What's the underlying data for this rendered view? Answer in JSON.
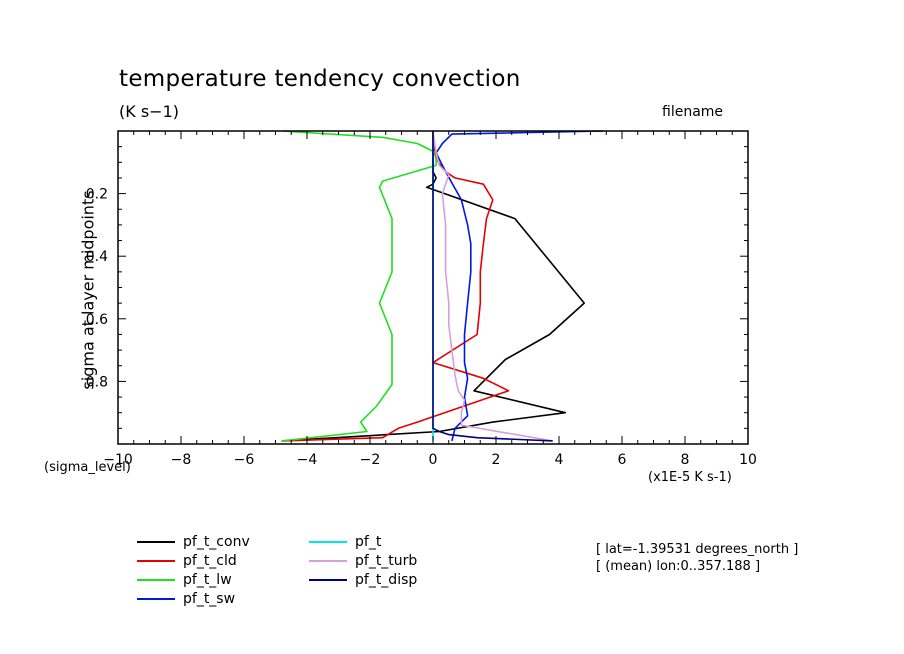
{
  "header": {
    "title": "temperature tendency convection",
    "subtitle": "(K s−1)",
    "filename": "filename"
  },
  "axes": {
    "y_title": "sigma at layer midpoints",
    "y_unit": "(sigma_level)",
    "x_unit": "(x1E-5 K s-1)"
  },
  "meta": {
    "line1": "[ lat=-1.39531 degrees_north ]",
    "line2": "[ (mean) lon:0..357.188 ]"
  },
  "chart_data": {
    "type": "line",
    "title": "temperature tendency convection",
    "subtitle": "(K s−1)",
    "xlabel": "(x1E-5 K s-1)",
    "ylabel": "sigma at layer midpoints",
    "xlim": [
      -10,
      10
    ],
    "ylim": [
      0,
      1
    ],
    "y_inverted": true,
    "x_ticks": [
      -10,
      -8,
      -6,
      -4,
      -2,
      0,
      2,
      4,
      6,
      8,
      10
    ],
    "x_tick_labels": [
      "−10",
      "−8",
      "−6",
      "−4",
      "−2",
      "0",
      "2",
      "4",
      "6",
      "8",
      "10"
    ],
    "y_ticks": [
      0.2,
      0.4,
      0.6,
      0.8
    ],
    "y_tick_labels": [
      "0.2",
      "0.4",
      "0.6",
      "0.8"
    ],
    "grid": false,
    "legend_position": "bottom-left",
    "series": [
      {
        "name": "pf_t_conv",
        "color": "#000000",
        "x": [
          0,
          0,
          0,
          0,
          0.1,
          0,
          -0.2,
          2.6,
          4.8,
          3.7,
          2.3,
          1.3,
          4.2,
          1.9,
          0.2,
          -4.8
        ],
        "y": [
          0,
          0.04,
          0.09,
          0.13,
          0.15,
          0.17,
          0.18,
          0.28,
          0.55,
          0.65,
          0.73,
          0.83,
          0.9,
          0.93,
          0.96,
          0.99
        ]
      },
      {
        "name": "pf_t_cld",
        "color": "#e60000",
        "x": [
          0,
          0,
          0.1,
          0.4,
          0.7,
          1.6,
          1.9,
          1.7,
          1.6,
          1.5,
          1.5,
          1.4,
          0,
          1.6,
          2.4,
          -0.5,
          -1.1,
          -1.6,
          -4.8
        ],
        "y": [
          0,
          0.04,
          0.09,
          0.13,
          0.15,
          0.17,
          0.22,
          0.28,
          0.36,
          0.45,
          0.55,
          0.65,
          0.74,
          0.79,
          0.83,
          0.93,
          0.95,
          0.98,
          0.99
        ]
      },
      {
        "name": "pf_t_lw",
        "color": "#20e020",
        "x": [
          -4.8,
          -1.6,
          -0.5,
          0.1,
          0.1,
          -1.6,
          -1.7,
          -1.3,
          -1.3,
          -1.3,
          -1.7,
          -1.3,
          -1.3,
          -1.3,
          -1.8,
          -2.3,
          -2.1,
          -4.8
        ],
        "y": [
          0,
          0.02,
          0.04,
          0.07,
          0.11,
          0.16,
          0.18,
          0.28,
          0.36,
          0.45,
          0.55,
          0.65,
          0.74,
          0.81,
          0.88,
          0.93,
          0.96,
          0.99
        ]
      },
      {
        "name": "pf_t_sw",
        "color": "#0018e0",
        "x": [
          5.4,
          0.6,
          0.3,
          0.1,
          0.4,
          0.9,
          1.1,
          1.2,
          1.2,
          1.1,
          1.0,
          1.0,
          1.1,
          1.0,
          1.1,
          0.7,
          0.6
        ],
        "y": [
          0,
          0.01,
          0.04,
          0.07,
          0.13,
          0.22,
          0.3,
          0.36,
          0.45,
          0.55,
          0.65,
          0.74,
          0.79,
          0.85,
          0.91,
          0.95,
          0.99
        ]
      },
      {
        "name": "pf_t",
        "color": "#00e6e6",
        "x": [
          0,
          0,
          0,
          0,
          0,
          0,
          0
        ],
        "y": [
          0,
          0.15,
          0.3,
          0.5,
          0.7,
          0.9,
          0.99
        ]
      },
      {
        "name": "pf_t_turb",
        "color": "#d8a0d8",
        "x": [
          0,
          0.1,
          0.2,
          0.5,
          0.3,
          0.4,
          0.4,
          0.5,
          0.5,
          0.6,
          0.7,
          0.8,
          1.0,
          0.9,
          0.9,
          3.8
        ],
        "y": [
          0,
          0.07,
          0.11,
          0.14,
          0.2,
          0.3,
          0.45,
          0.55,
          0.62,
          0.7,
          0.78,
          0.83,
          0.86,
          0.9,
          0.94,
          0.99
        ]
      },
      {
        "name": "pf_t_disp",
        "color": "#000080",
        "x": [
          0,
          0,
          0,
          0,
          0,
          0,
          0,
          0.2,
          0.5,
          1.4,
          3.8
        ],
        "y": [
          0,
          0.15,
          0.3,
          0.5,
          0.7,
          0.9,
          0.95,
          0.96,
          0.97,
          0.98,
          0.99
        ]
      }
    ]
  },
  "legend": {
    "items": [
      {
        "label": "pf_t_conv",
        "color": "#000000"
      },
      {
        "label": "pf_t_cld",
        "color": "#e60000"
      },
      {
        "label": "pf_t_lw",
        "color": "#20e020"
      },
      {
        "label": "pf_t_sw",
        "color": "#0018e0"
      },
      {
        "label": "pf_t",
        "color": "#00e6e6"
      },
      {
        "label": "pf_t_turb",
        "color": "#d8a0d8"
      },
      {
        "label": "pf_t_disp",
        "color": "#000080"
      }
    ]
  }
}
